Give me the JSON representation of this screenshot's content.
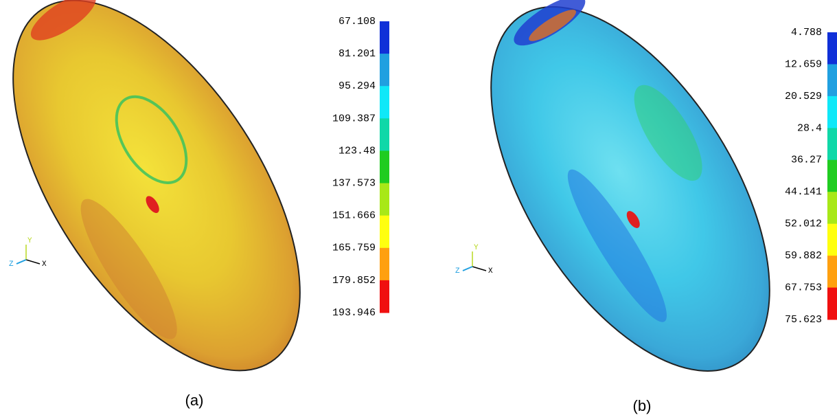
{
  "panels": [
    {
      "caption": "(a)",
      "triad": {
        "x": "X",
        "y": "Y",
        "z": "Z"
      },
      "legend": [
        67.108,
        81.201,
        95.294,
        109.387,
        123.48,
        137.573,
        151.666,
        165.759,
        179.852,
        193.946
      ]
    },
    {
      "caption": "(b)",
      "triad": {
        "x": "X",
        "y": "Y",
        "z": "Z"
      },
      "legend": [
        4.788,
        12.659,
        20.529,
        28.4,
        36.27,
        44.141,
        52.012,
        59.882,
        67.753,
        75.623
      ]
    }
  ]
}
